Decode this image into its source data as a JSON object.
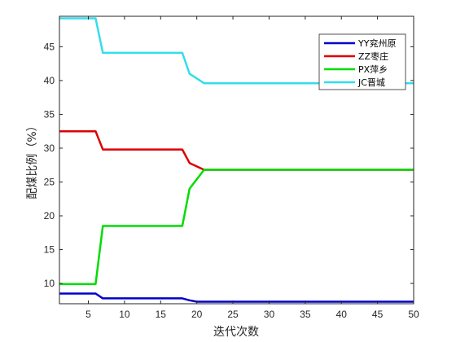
{
  "chart_data": {
    "type": "line",
    "title": "",
    "xlabel": "迭代次数",
    "ylabel": "配煤比例（%）",
    "xlim": [
      1,
      50
    ],
    "ylim": [
      7,
      49.5
    ],
    "x_ticks": [
      5,
      10,
      15,
      20,
      25,
      30,
      35,
      40,
      45,
      50
    ],
    "y_ticks": [
      10,
      15,
      20,
      25,
      30,
      35,
      40,
      45
    ],
    "grid": false,
    "legend_position": "top-right",
    "series": [
      {
        "name": "YY兖州原",
        "color": "#0000cc",
        "x": [
          1,
          6,
          7,
          18,
          19,
          20,
          50
        ],
        "y": [
          8.5,
          8.5,
          7.8,
          7.8,
          7.5,
          7.3,
          7.3
        ]
      },
      {
        "name": "ZZ枣庄",
        "color": "#dd0000",
        "x": [
          1,
          6,
          7,
          18,
          19,
          21,
          50
        ],
        "y": [
          32.5,
          32.5,
          29.8,
          29.8,
          27.8,
          26.8,
          26.8
        ]
      },
      {
        "name": "PX萍乡",
        "color": "#00dd00",
        "x": [
          1,
          6,
          7,
          18,
          19,
          21,
          50
        ],
        "y": [
          9.9,
          9.9,
          18.5,
          18.5,
          24.0,
          26.8,
          26.8
        ]
      },
      {
        "name": "JC晋城",
        "color": "#33ddee",
        "x": [
          1,
          6,
          7,
          18,
          19,
          21,
          50
        ],
        "y": [
          49.2,
          49.2,
          44.1,
          44.1,
          41.0,
          39.6,
          39.6
        ]
      }
    ]
  }
}
